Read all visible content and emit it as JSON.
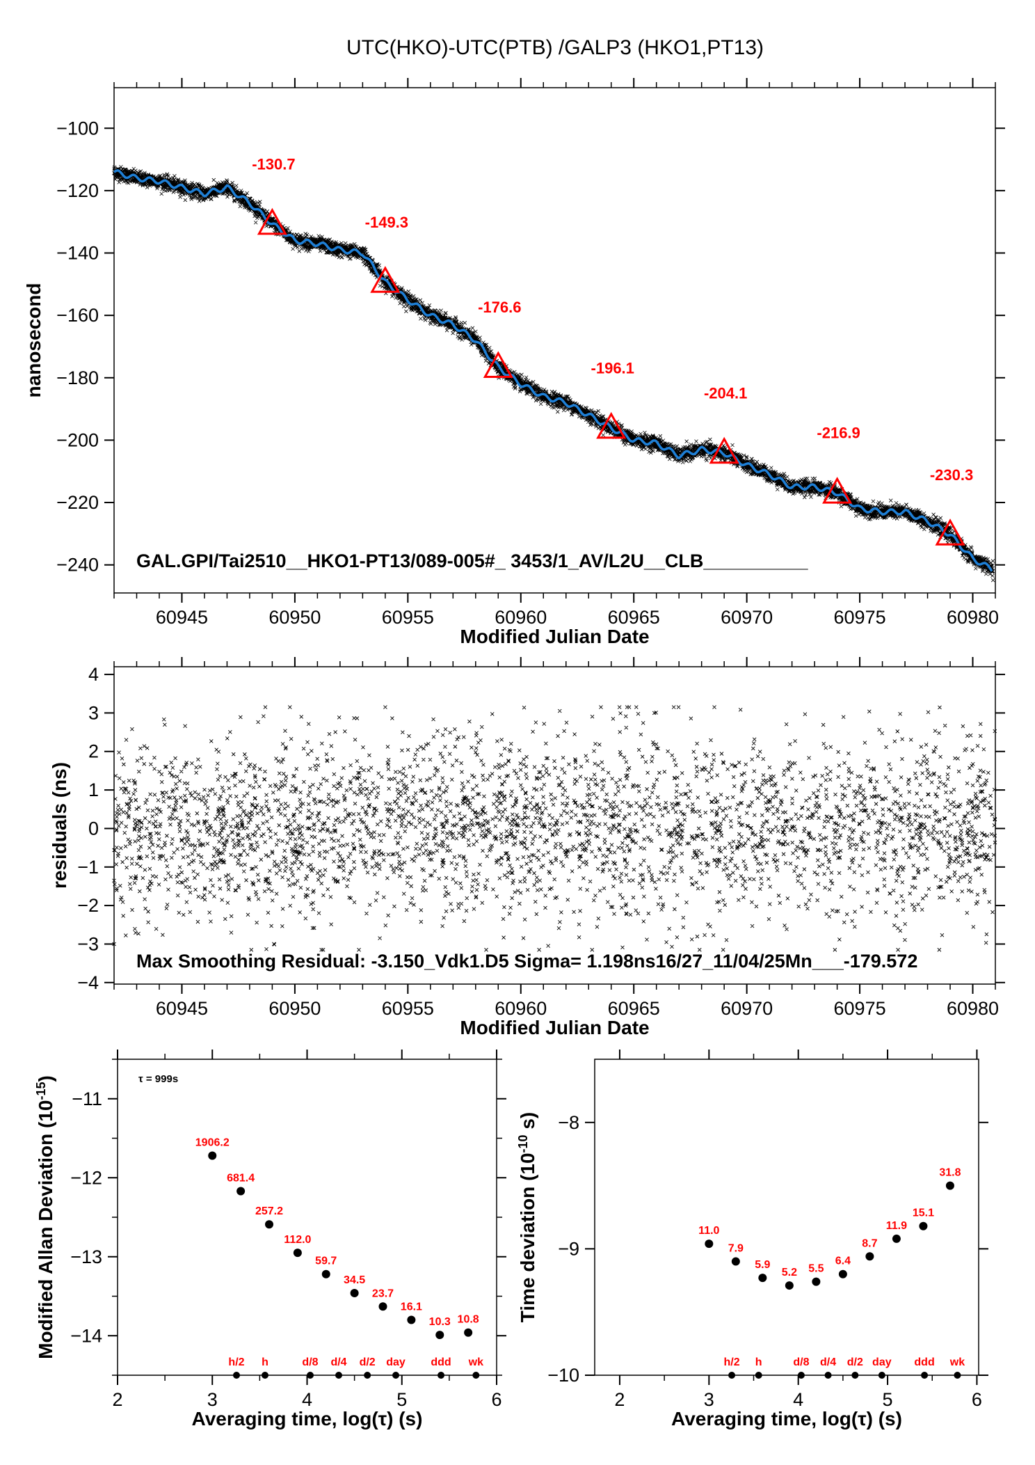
{
  "title": "UTC(HKO)-UTC(PTB)  /GALP3  (HKO1,PT13)",
  "chart_data": [
    {
      "type": "line",
      "xlabel": "Modified Julian Date",
      "ylabel": "nanosecond",
      "xlim": [
        60942,
        60981
      ],
      "ylim": [
        -249,
        -87
      ],
      "xticks": [
        60945,
        60950,
        60955,
        60960,
        60965,
        60970,
        60975,
        60980
      ],
      "yticks": [
        -100,
        -120,
        -140,
        -160,
        -180,
        -200,
        -220,
        -240
      ],
      "grid": false,
      "series_color": "#1e7fd6",
      "raw_marker_color": "#000000",
      "smoothed": {
        "x": [
          60942,
          60943,
          60944,
          60945,
          60946,
          60947,
          60948,
          60949,
          60950,
          60951,
          60952,
          60953,
          60954,
          60955,
          60956,
          60957,
          60958,
          60959,
          60960,
          60961,
          60962,
          60963,
          60964,
          60965,
          60966,
          60967,
          60968,
          60969,
          60970,
          60971,
          60972,
          60973,
          60974,
          60975,
          60976,
          60977,
          60978,
          60979,
          60980,
          60981
        ],
        "y": [
          -114,
          -116,
          -117,
          -119,
          -121,
          -119,
          -124,
          -130.7,
          -136,
          -137,
          -139,
          -140,
          -149.3,
          -155,
          -160,
          -163,
          -168,
          -176.6,
          -182,
          -186,
          -188,
          -192,
          -196.1,
          -200,
          -201,
          -205,
          -203,
          -204.1,
          -208,
          -211,
          -215,
          -215,
          -216.9,
          -222,
          -223,
          -223,
          -226,
          -230.3,
          -238,
          -242
        ]
      },
      "markers": {
        "color": "#ff0000",
        "x": [
          60949,
          60954,
          60959,
          60964,
          60969,
          60974,
          60979
        ],
        "y": [
          -130.7,
          -149.3,
          -176.6,
          -196.1,
          -204.1,
          -216.9,
          -230.3
        ],
        "labels": [
          "-130.7",
          "-149.3",
          "-176.6",
          "-196.1",
          "-204.1",
          "-216.9",
          "-230.3"
        ]
      },
      "annotation": "GAL.GPI/Tai2510__HKO1-PT13/089-005#_  3453/1_AV/L2U__CLB__________"
    },
    {
      "type": "scatter",
      "xlabel": "Modified Julian Date",
      "ylabel": "residuals (ns)",
      "xlim": [
        60942,
        60981
      ],
      "ylim": [
        -4.04,
        4.2
      ],
      "xticks": [
        60945,
        60950,
        60955,
        60960,
        60965,
        60970,
        60975,
        60980
      ],
      "yticks": [
        4,
        3,
        2,
        1,
        0,
        -1,
        -2,
        -3,
        -4
      ],
      "grid": false,
      "sigma": 1.198,
      "annotation": "Max Smoothing Residual: -3.150_Vdk1.D5  Sigma= 1.198ns16/27_11/04/25Mn___-179.572"
    },
    {
      "type": "scatter",
      "xlabel": "Averaging time, log(τ) (s)",
      "ylabel": "Modified Allan Deviation (10",
      "ylabel_exp": "-15",
      "ylabel_end": ")",
      "xlim": [
        2,
        6
      ],
      "ylim": [
        -14.5,
        -10.5
      ],
      "xticks": [
        2,
        3,
        4,
        5,
        6
      ],
      "yticks": [
        -11,
        -12,
        -13,
        -14
      ],
      "note": "τ = 999s",
      "x": [
        3,
        3.3,
        3.6,
        3.9,
        4.2,
        4.5,
        4.8,
        5.1,
        5.4,
        5.7
      ],
      "y": [
        -11.72,
        -12.17,
        -12.59,
        -12.95,
        -13.22,
        -13.46,
        -13.63,
        -13.8,
        -13.99,
        -13.96
      ],
      "labels": [
        "1906.2",
        "681.4",
        "257.2",
        "112.0",
        "59.7",
        "34.5",
        "23.7",
        "16.1",
        "10.3",
        "10.8"
      ],
      "label_color": "#ff0000",
      "period_marks": {
        "x": [
          3.255,
          3.556,
          4.033,
          4.334,
          4.636,
          4.936,
          5.413,
          5.782
        ],
        "labels": [
          "h/2",
          "h",
          "d/8",
          "d/4",
          "d/2",
          "day",
          "ddd",
          "wk"
        ]
      }
    },
    {
      "type": "scatter",
      "xlabel": "Averaging time, log(τ) (s)",
      "ylabel": "Time deviation (10",
      "ylabel_exp": "-10",
      "ylabel_end": " s)",
      "xlim": [
        1.72,
        6.02
      ],
      "ylim": [
        -10,
        -7.5
      ],
      "xticks": [
        2,
        3,
        4,
        5,
        6
      ],
      "yticks": [
        -8,
        -9,
        -10
      ],
      "x": [
        3,
        3.3,
        3.6,
        3.9,
        4.2,
        4.5,
        4.8,
        5.1,
        5.4,
        5.7
      ],
      "y": [
        -8.96,
        -9.1,
        -9.23,
        -9.29,
        -9.26,
        -9.2,
        -9.06,
        -8.92,
        -8.82,
        -8.5
      ],
      "labels": [
        "11.0",
        "7.9",
        "5.9",
        "5.2",
        "5.5",
        "6.4",
        "8.7",
        "11.9",
        "15.1",
        "31.8"
      ],
      "label_color": "#ff0000",
      "period_marks": {
        "x": [
          3.255,
          3.556,
          4.033,
          4.334,
          4.636,
          4.936,
          5.413,
          5.782
        ],
        "labels": [
          "h/2",
          "h",
          "d/8",
          "d/4",
          "d/2",
          "day",
          "ddd",
          "wk"
        ]
      }
    }
  ]
}
